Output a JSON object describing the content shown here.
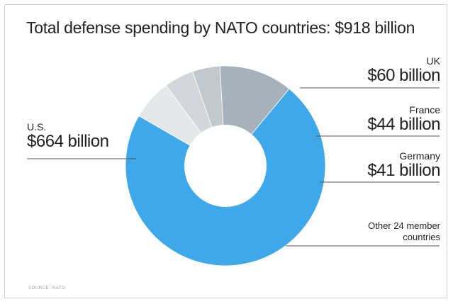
{
  "title": "Total defense spending by NATO countries: $918 billion",
  "source": "SOURCE: NATO",
  "chart_data": {
    "type": "pie",
    "variant": "donut",
    "title": "Total defense spending by NATO countries: $918 billion",
    "unit": "billion USD",
    "slices": [
      {
        "name": "U.S.",
        "value": 664,
        "label": "$664 billion",
        "color": "#3ea8e8"
      },
      {
        "name": "UK",
        "value": 60,
        "label": "$60 billion",
        "color": "#e4e7ea"
      },
      {
        "name": "France",
        "value": 44,
        "label": "$44 billion",
        "color": "#d3d7db"
      },
      {
        "name": "Germany",
        "value": 41,
        "label": "$41 billion",
        "color": "#c3c8cd"
      },
      {
        "name": "Other 24 member countries",
        "value": 109,
        "label": "",
        "color": "#a7b1b9"
      }
    ]
  },
  "colors": {
    "leader_line": "#555555",
    "title_text": "#222222",
    "hole": "#ffffff"
  }
}
